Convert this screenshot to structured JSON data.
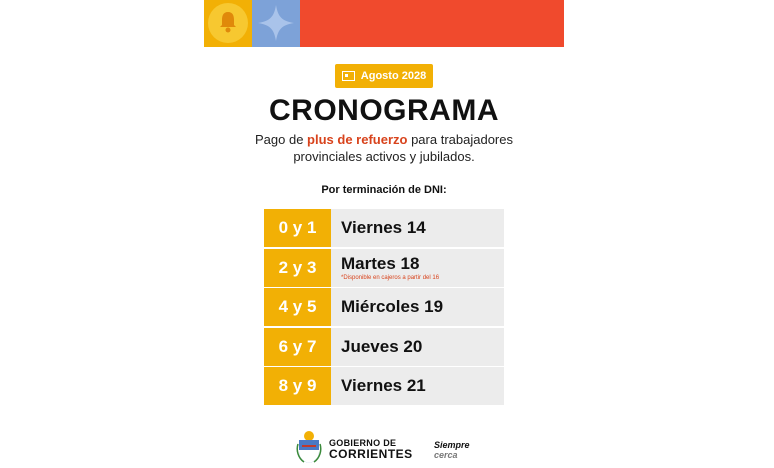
{
  "header": {
    "colors": {
      "yellow": "#f2b005",
      "blue": "#7da2d8",
      "red": "#f04a2d"
    },
    "icons": [
      "bell-icon",
      "star-icon"
    ]
  },
  "badge": {
    "icon": "calendar-icon",
    "label": "Agosto 2028"
  },
  "title": "CRONOGRAMA",
  "subtitle": {
    "before": "Pago de ",
    "highlight": "plus de refuerzo",
    "after": " para trabajadores",
    "line2": "provinciales activos y jubilados."
  },
  "dni_label": "Por terminación de DNI:",
  "schedule": [
    {
      "digits": "0 y 1",
      "day": "Viernes 14",
      "note": ""
    },
    {
      "digits": "2 y 3",
      "day": "Martes 18",
      "note": "*Disponible en cajeros a partir del 16"
    },
    {
      "digits": "4 y 5",
      "day": "Miércoles 19",
      "note": ""
    },
    {
      "digits": "6 y 7",
      "day": "Jueves 20",
      "note": ""
    },
    {
      "digits": "8 y 9",
      "day": "Viernes 21",
      "note": ""
    }
  ],
  "footer": {
    "logo": "coat-of-arms-icon",
    "gov_line1": "GOBIERNO DE",
    "gov_line2": "CORRIENTES",
    "motto_line1": "Siempre",
    "motto_line2": "cerca"
  }
}
